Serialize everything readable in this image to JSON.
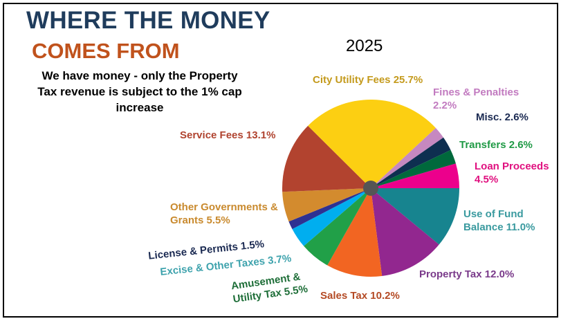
{
  "title_line1": "WHERE THE MONEY",
  "title_line2": "COMES FROM",
  "subtitle": "We have money - only the Property Tax revenue is subject to the 1% cap increase",
  "chart_data": {
    "type": "pie",
    "title": "2025",
    "start": "3 o'clock, clockwise",
    "slices": [
      {
        "label": "Use of Fund Balance 11.0%",
        "name": "Use of Fund Balance",
        "value": 11.0,
        "color": "#17848f"
      },
      {
        "label": "Property Tax 12.0%",
        "name": "Property Tax",
        "value": 12.0,
        "color": "#92278f"
      },
      {
        "label": "Sales Tax 10.2%",
        "name": "Sales Tax",
        "value": 10.2,
        "color": "#f26522"
      },
      {
        "label": "Amusement & Utility Tax 5.5%",
        "name": "Amusement & Utility Tax",
        "value": 5.5,
        "color": "#21a048"
      },
      {
        "label": "Excise & Other Taxes 3.7%",
        "name": "Excise & Other Taxes",
        "value": 3.7,
        "color": "#00aeef"
      },
      {
        "label": "License & Permits 1.5%",
        "name": "License & Permits",
        "value": 1.5,
        "color": "#2e3192"
      },
      {
        "label": "Other Governments & Grants 5.5%",
        "name": "Other Governments & Grants",
        "value": 5.5,
        "color": "#d38b2e"
      },
      {
        "label": "Service Fees 13.1%",
        "name": "Service Fees",
        "value": 13.1,
        "color": "#b2432f"
      },
      {
        "label": "City Utility Fees 25.7%",
        "name": "City Utility Fees",
        "value": 25.7,
        "color": "#fccf12"
      },
      {
        "label": "Fines & Penalties 2.2%",
        "name": "Fines & Penalties",
        "value": 2.2,
        "color": "#c688c0"
      },
      {
        "label": "Misc. 2.6%",
        "name": "Misc.",
        "value": 2.6,
        "color": "#0e2f50"
      },
      {
        "label": "Transfers 2.6%",
        "name": "Transfers",
        "value": 2.6,
        "color": "#00693c"
      },
      {
        "label": "Loan Proceeds 4.5%",
        "name": "Loan Proceeds",
        "value": 4.5,
        "color": "#ec008c"
      }
    ]
  }
}
